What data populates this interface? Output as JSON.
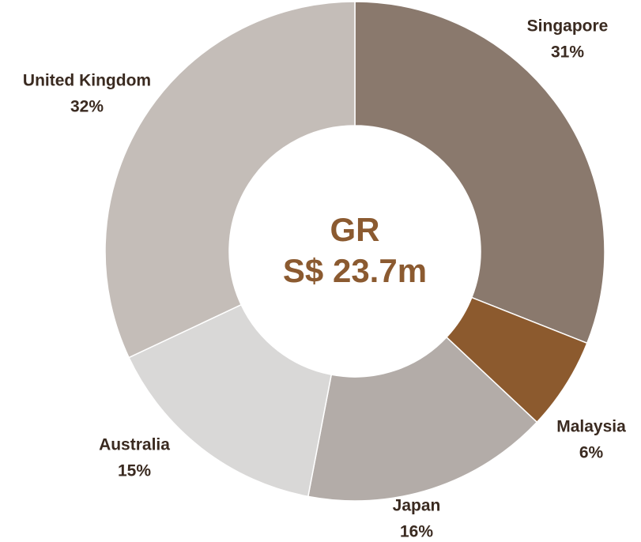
{
  "chart_data": {
    "type": "donut",
    "title": "GR",
    "subtitle": "S$ 23.7m",
    "categories": [
      "Singapore",
      "Malaysia",
      "Japan",
      "Australia",
      "United Kingdom"
    ],
    "values": [
      31,
      6,
      16,
      15,
      32
    ],
    "value_labels": [
      "31%",
      "6%",
      "16%",
      "15%",
      "32%"
    ],
    "colors": [
      "#8a796d",
      "#8c5a2e",
      "#b3aca8",
      "#d9d8d7",
      "#c4bdb8"
    ]
  }
}
